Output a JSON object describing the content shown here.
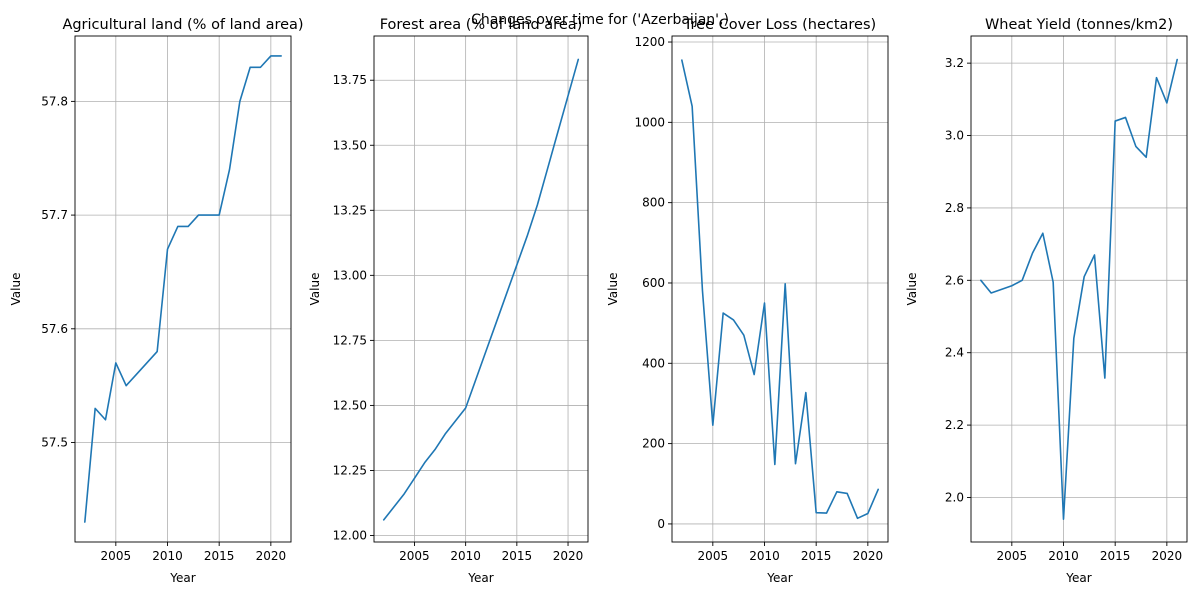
{
  "figure": {
    "suptitle": "Changes over time for ('Azerbaijan',)",
    "line_color": "#1f77b4"
  },
  "chart_data": [
    {
      "type": "line",
      "title": "Agricultural land (% of land area)",
      "xlabel": "Year",
      "ylabel": "Value",
      "grid": true,
      "xlim": [
        2001.05,
        2021.95
      ],
      "ylim": [
        57.4125,
        57.8575
      ],
      "xticks": [
        2005,
        2010,
        2015,
        2020
      ],
      "yticks": [
        57.5,
        57.6,
        57.7,
        57.8
      ],
      "ytick_labels": [
        "57.5",
        "57.6",
        "57.7",
        "57.8"
      ],
      "x": [
        2002,
        2003,
        2004,
        2005,
        2006,
        2007,
        2008,
        2009,
        2010,
        2011,
        2012,
        2013,
        2014,
        2015,
        2016,
        2017,
        2018,
        2019,
        2020,
        2021
      ],
      "y": [
        57.43,
        57.53,
        57.52,
        57.57,
        57.55,
        57.56,
        57.57,
        57.58,
        57.67,
        57.69,
        57.69,
        57.7,
        57.7,
        57.7,
        57.74,
        57.8,
        57.83,
        57.83,
        57.84,
        57.84
      ]
    },
    {
      "type": "line",
      "title": "Forest area (% of land area)",
      "xlabel": "Year",
      "ylabel": "Value",
      "grid": true,
      "xlim": [
        2001.05,
        2021.95
      ],
      "ylim": [
        11.975,
        13.92
      ],
      "xticks": [
        2005,
        2010,
        2015,
        2020
      ],
      "yticks": [
        12.0,
        12.25,
        12.5,
        12.75,
        13.0,
        13.25,
        13.5,
        13.75
      ],
      "ytick_labels": [
        "12.00",
        "12.25",
        "12.50",
        "12.75",
        "13.00",
        "13.25",
        "13.50",
        "13.75"
      ],
      "x": [
        2002,
        2003,
        2004,
        2005,
        2006,
        2007,
        2008,
        2009,
        2010,
        2011,
        2012,
        2013,
        2014,
        2015,
        2016,
        2017,
        2018,
        2019,
        2020,
        2021
      ],
      "y": [
        12.06,
        12.11,
        12.16,
        12.22,
        12.28,
        12.33,
        12.39,
        12.44,
        12.49,
        12.6,
        12.71,
        12.82,
        12.93,
        13.04,
        13.15,
        13.27,
        13.41,
        13.55,
        13.69,
        13.83
      ]
    },
    {
      "type": "line",
      "title": "Tree Cover Loss (hectares)",
      "xlabel": "Year",
      "ylabel": "Value",
      "grid": true,
      "xlim": [
        2001.05,
        2021.95
      ],
      "ylim": [
        -45,
        1215
      ],
      "xticks": [
        2005,
        2010,
        2015,
        2020
      ],
      "yticks": [
        0,
        200,
        400,
        600,
        800,
        1000,
        1200
      ],
      "ytick_labels": [
        "0",
        "200",
        "400",
        "600",
        "800",
        "1000",
        "1200"
      ],
      "x": [
        2002,
        2003,
        2004,
        2005,
        2006,
        2007,
        2008,
        2009,
        2010,
        2011,
        2012,
        2013,
        2014,
        2015,
        2016,
        2017,
        2018,
        2019,
        2020,
        2021
      ],
      "y": [
        1155,
        1040,
        580,
        246,
        525,
        508,
        470,
        372,
        550,
        148,
        598,
        150,
        327,
        28,
        27,
        80,
        76,
        14,
        26,
        86
      ]
    },
    {
      "type": "line",
      "title": "Wheat Yield (tonnes/km2)",
      "xlabel": "Year",
      "ylabel": "Value",
      "grid": true,
      "xlim": [
        2001.05,
        2021.95
      ],
      "ylim": [
        1.877,
        3.275
      ],
      "xticks": [
        2005,
        2010,
        2015,
        2020
      ],
      "yticks": [
        2.0,
        2.2,
        2.4,
        2.6,
        2.8,
        3.0,
        3.2
      ],
      "ytick_labels": [
        "2.0",
        "2.2",
        "2.4",
        "2.6",
        "2.8",
        "3.0",
        "3.2"
      ],
      "x": [
        2002,
        2003,
        2004,
        2005,
        2006,
        2007,
        2008,
        2009,
        2010,
        2011,
        2012,
        2013,
        2014,
        2015,
        2016,
        2017,
        2018,
        2019,
        2020,
        2021
      ],
      "y": [
        2.6,
        2.565,
        2.575,
        2.585,
        2.6,
        2.675,
        2.73,
        2.595,
        1.94,
        2.44,
        2.61,
        2.67,
        2.33,
        3.04,
        3.05,
        2.97,
        2.94,
        3.16,
        3.09,
        3.21
      ]
    }
  ]
}
